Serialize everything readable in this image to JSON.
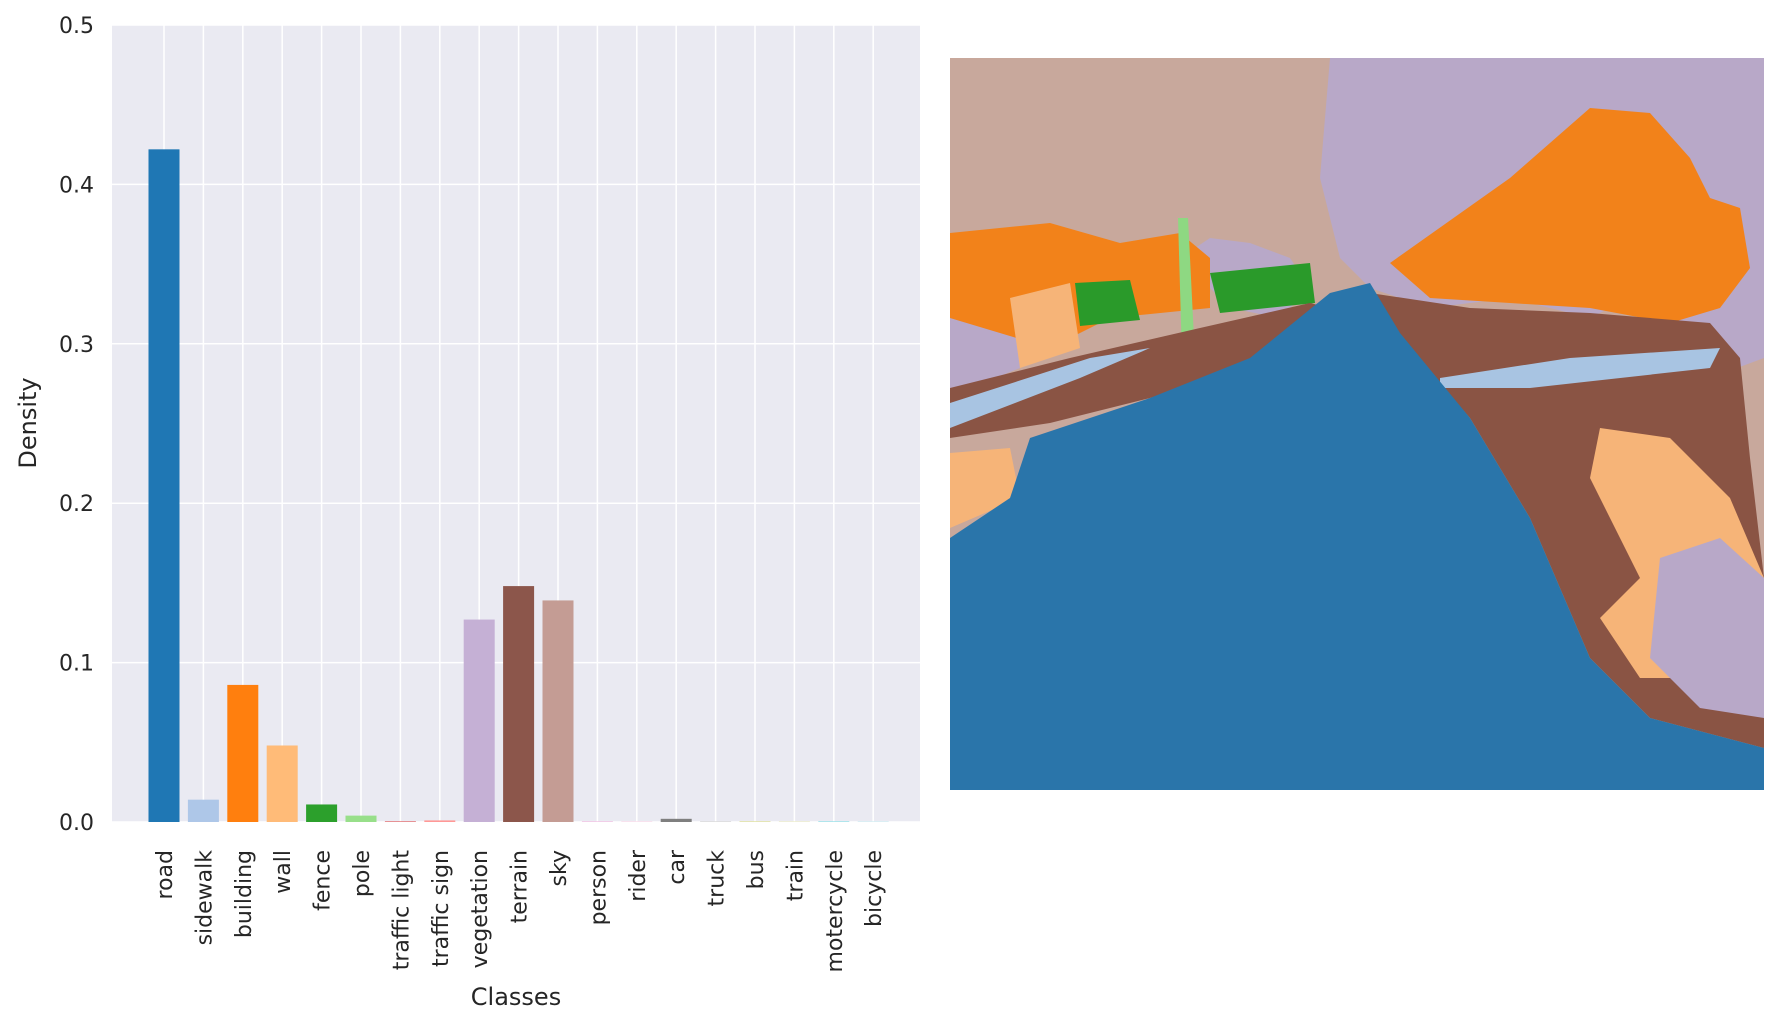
{
  "chart_data": {
    "type": "bar",
    "title": "",
    "xlabel": "Classes",
    "ylabel": "Density",
    "ylim": [
      0,
      0.5
    ],
    "yticks": [
      "0.0",
      "0.1",
      "0.2",
      "0.3",
      "0.4",
      "0.5"
    ],
    "grid": true,
    "categories": [
      "road",
      "sidewalk",
      "building",
      "wall",
      "fence",
      "pole",
      "traffic light",
      "traffic sign",
      "vegetation",
      "terrain",
      "sky",
      "person",
      "rider",
      "car",
      "truck",
      "bus",
      "train",
      "motercycle",
      "bicycle"
    ],
    "values": [
      0.422,
      0.014,
      0.086,
      0.048,
      0.011,
      0.004,
      0.0003,
      0.001,
      0.127,
      0.148,
      0.139,
      0.0002,
      0.0002,
      0.002,
      0.0003,
      0.0002,
      0.0002,
      0.0002,
      0.0002
    ],
    "colors": [
      "#1f77b4",
      "#aec7e8",
      "#ff7f0e",
      "#ffbb78",
      "#2ca02c",
      "#98df8a",
      "#d62728",
      "#ff9896",
      "#c5b0d5",
      "#8c564b",
      "#c49c94",
      "#e377c2",
      "#f7b6d2",
      "#7f7f7f",
      "#c7c7c7",
      "#bcbd22",
      "#dbdb8d",
      "#17becf",
      "#9edae5"
    ]
  },
  "segmentation": {
    "colors": {
      "sky": "#c8a89c",
      "vegetation": "#b8a8c8",
      "building": "#f2821a",
      "wall": "#f6b478",
      "fence": "#2a9a2a",
      "pole": "#8ed882",
      "terrain": "#8a5444",
      "sidewalk": "#a8c4e2",
      "road": "#2a75aa"
    }
  }
}
